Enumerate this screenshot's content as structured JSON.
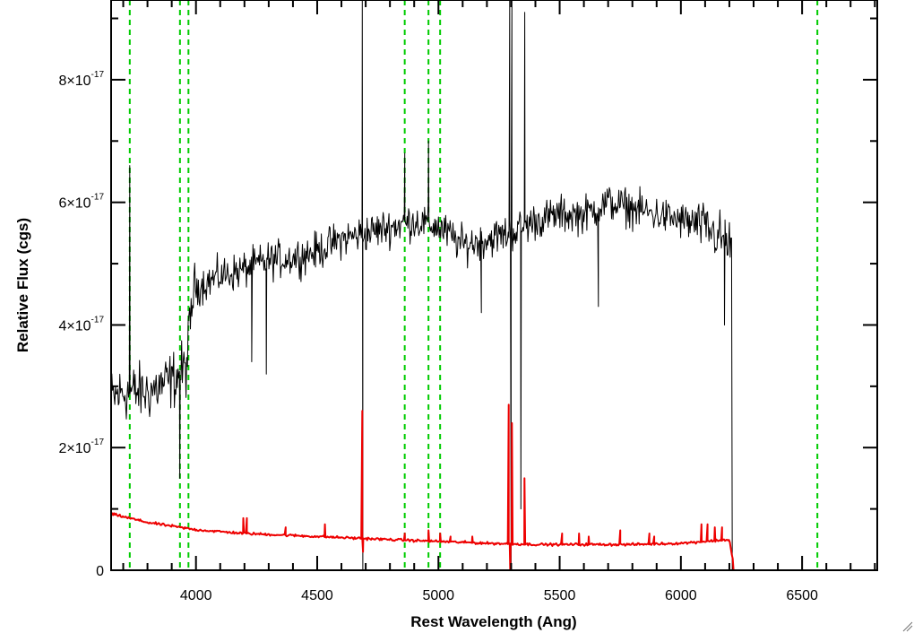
{
  "chart_data": {
    "type": "line",
    "title": "",
    "xlabel": "Rest Wavelength (Ang)",
    "ylabel": "Relative Flux (cgs)",
    "xlim": [
      3650,
      6810
    ],
    "ylim": [
      0,
      9.3e-17
    ],
    "x_ticks": [
      4000,
      4500,
      5000,
      5500,
      6000,
      6500
    ],
    "x_tick_labels": [
      "4000",
      "4500",
      "5000",
      "5500",
      "6000",
      "6500"
    ],
    "y_ticks": [
      0,
      2e-17,
      4e-17,
      6e-17,
      8e-17
    ],
    "y_tick_labels": [
      {
        "base": "0",
        "exp": ""
      },
      {
        "base": "2×10",
        "exp": "-17"
      },
      {
        "base": "4×10",
        "exp": "-17"
      },
      {
        "base": "6×10",
        "exp": "-17"
      },
      {
        "base": "8×10",
        "exp": "-17"
      }
    ],
    "grid": false,
    "legend": "none",
    "reference_lines": {
      "color": "#00cc00",
      "style": "dashed",
      "x": [
        3727,
        3934,
        3969,
        4861,
        4959,
        5007,
        6563
      ]
    },
    "series": [
      {
        "color": "#000000",
        "style": "noisy",
        "x_start": 3650,
        "x_end": 6210,
        "drop_to": 0,
        "drop_end": 6810,
        "continuum": [
          [
            3650,
            2.8e-17
          ],
          [
            3700,
            2.9e-17
          ],
          [
            3800,
            2.9e-17
          ],
          [
            3900,
            3.1e-17
          ],
          [
            3960,
            3.3e-17
          ],
          [
            3990,
            4.6e-17
          ],
          [
            4100,
            4.8e-17
          ],
          [
            4200,
            4.9e-17
          ],
          [
            4300,
            5.05e-17
          ],
          [
            4400,
            5.1e-17
          ],
          [
            4500,
            5.2e-17
          ],
          [
            4600,
            5.4e-17
          ],
          [
            4700,
            5.5e-17
          ],
          [
            4800,
            5.6e-17
          ],
          [
            4900,
            5.7e-17
          ],
          [
            5000,
            5.6e-17
          ],
          [
            5100,
            5.3e-17
          ],
          [
            5200,
            5.4e-17
          ],
          [
            5300,
            5.5e-17
          ],
          [
            5400,
            5.7e-17
          ],
          [
            5500,
            5.8e-17
          ],
          [
            5600,
            5.8e-17
          ],
          [
            5700,
            6e-17
          ],
          [
            5800,
            5.9e-17
          ],
          [
            5900,
            5.8e-17
          ],
          [
            6000,
            5.7e-17
          ],
          [
            6100,
            5.6e-17
          ],
          [
            6200,
            5.3e-17
          ]
        ],
        "noise": [
          [
            3650,
            7e-18
          ],
          [
            3990,
            7e-18
          ],
          [
            4000,
            4.5e-18
          ],
          [
            6000,
            4.5e-18
          ],
          [
            6210,
            7e-18
          ]
        ],
        "spikes": [
          [
            3727,
            6.6e-17
          ],
          [
            3933,
            1.5e-17
          ],
          [
            4230,
            3.4e-17
          ],
          [
            4290,
            3.2e-17
          ],
          [
            4686,
            9.3e-17
          ],
          [
            4688,
            0
          ],
          [
            4861,
            6.8e-17
          ],
          [
            4959,
            7e-17
          ],
          [
            5177,
            4.2e-17
          ],
          [
            5294,
            9.3e-17
          ],
          [
            5300,
            0
          ],
          [
            5303,
            9.3e-17
          ],
          [
            5340,
            1e-17
          ],
          [
            5356,
            9.1e-17
          ],
          [
            5660,
            4.3e-17
          ],
          [
            6180,
            4e-17
          ]
        ]
      },
      {
        "color": "#ee0000",
        "style": "smooth",
        "x_start": 3650,
        "x_end": 6215,
        "drop_to": 0,
        "drop_end": 6810,
        "continuum": [
          [
            3650,
            9.2e-18
          ],
          [
            3800,
            7.8e-18
          ],
          [
            4000,
            6.6e-18
          ],
          [
            4200,
            6e-18
          ],
          [
            4500,
            5.5e-18
          ],
          [
            4800,
            5e-18
          ],
          [
            5000,
            4.7e-18
          ],
          [
            5200,
            4.4e-18
          ],
          [
            5400,
            4.2e-18
          ],
          [
            5600,
            4.2e-18
          ],
          [
            5800,
            4.2e-18
          ],
          [
            6000,
            4.4e-18
          ],
          [
            6200,
            5e-18
          ],
          [
            6212,
            2e-18
          ]
        ],
        "noise": [
          [
            3650,
            3e-19
          ],
          [
            6215,
            3e-19
          ]
        ],
        "spikes": [
          [
            4195,
            8.5e-18
          ],
          [
            4210,
            8.5e-18
          ],
          [
            4370,
            7e-18
          ],
          [
            4532,
            7.5e-18
          ],
          [
            4686,
            2.6e-17
          ],
          [
            4689,
            3e-18
          ],
          [
            4861,
            6e-18
          ],
          [
            4959,
            6.5e-18
          ],
          [
            5007,
            6e-18
          ],
          [
            5050,
            5.5e-18
          ],
          [
            5140,
            5.5e-18
          ],
          [
            5290,
            2.7e-17
          ],
          [
            5296,
            0
          ],
          [
            5303,
            2.4e-17
          ],
          [
            5355,
            1.5e-17
          ],
          [
            5510,
            6e-18
          ],
          [
            5580,
            6e-18
          ],
          [
            5620,
            5.5e-18
          ],
          [
            5750,
            6.5e-18
          ],
          [
            5870,
            6e-18
          ],
          [
            5890,
            5.5e-18
          ],
          [
            6085,
            7.5e-18
          ],
          [
            6110,
            7.5e-18
          ],
          [
            6140,
            7e-18
          ],
          [
            6170,
            7e-18
          ]
        ]
      }
    ]
  }
}
